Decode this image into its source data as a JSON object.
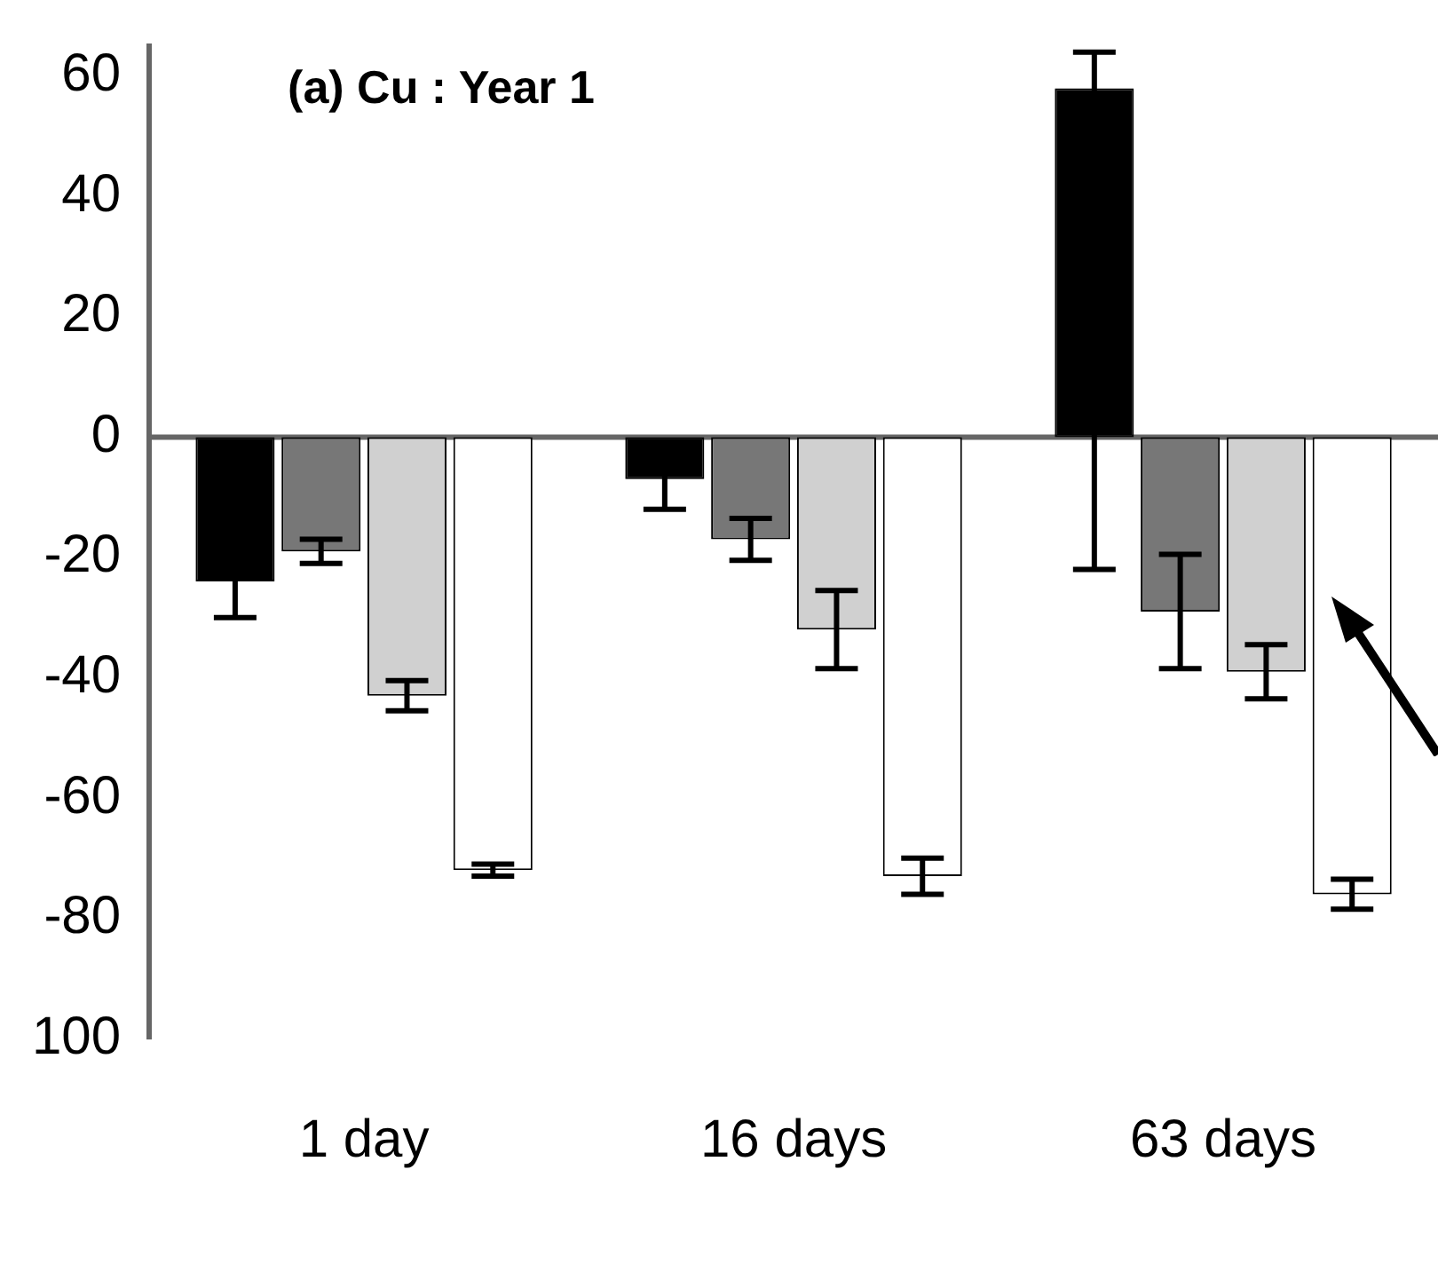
{
  "chart_data": {
    "type": "bar",
    "title": "(a) Cu : Year 1",
    "categories": [
      "1 day",
      "16 days",
      "63 days"
    ],
    "series": [
      {
        "color": "#000000",
        "values": [
          -24,
          -7,
          58
        ],
        "errors": [
          6,
          5,
          [
            -22,
            64
          ]
        ]
      },
      {
        "color": "#777777",
        "values": [
          -19,
          -17,
          -29
        ],
        "errors": [
          2,
          3.5,
          9.5
        ]
      },
      {
        "color": "#d0d0d0",
        "values": [
          -43,
          -32,
          -39
        ],
        "errors": [
          2.5,
          6.5,
          4.5
        ]
      },
      {
        "color": "#ffffff",
        "values": [
          -72,
          -73,
          -76
        ],
        "errors": [
          1,
          3,
          2.5
        ]
      }
    ],
    "ylim": [
      -100,
      65
    ],
    "yticks": [
      60,
      40,
      20,
      0,
      -20,
      -40,
      -60,
      -80,
      {
        "value": -100,
        "label": "100"
      }
    ],
    "ref_lines": [
      {
        "axis": "y",
        "value": 0,
        "color": "#666666"
      }
    ],
    "grid": false,
    "legend": false
  }
}
